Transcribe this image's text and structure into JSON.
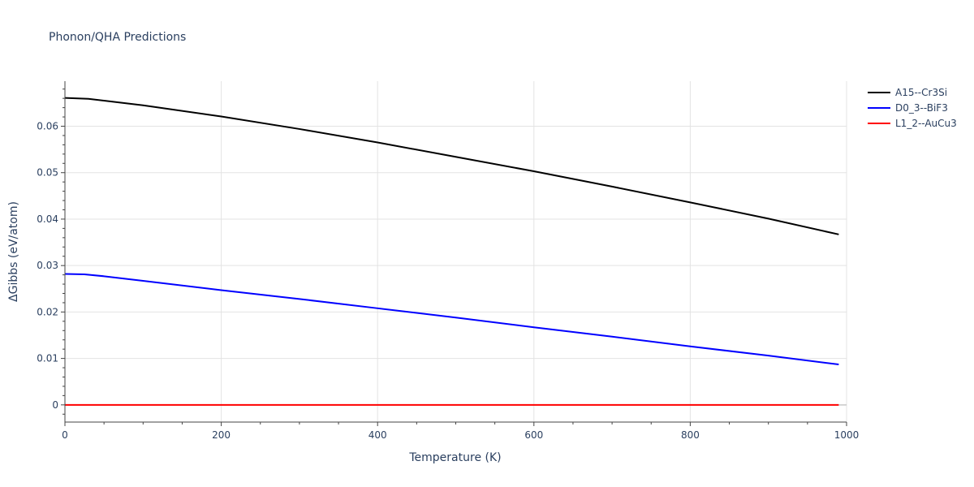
{
  "chart_data": {
    "type": "line",
    "title": "Phonon/QHA Predictions",
    "xlabel": "Temperature (K)",
    "ylabel": "ΔGibbs (eV/atom)",
    "xlim": [
      0,
      1000
    ],
    "ylim": [
      -0.0037,
      0.0697
    ],
    "xticks": [
      0,
      200,
      400,
      600,
      800,
      1000
    ],
    "xtick_labels": [
      "0",
      "200",
      "400",
      "600",
      "800",
      "1000"
    ],
    "yticks": [
      0,
      0.01,
      0.02,
      0.03,
      0.04,
      0.05,
      0.06
    ],
    "ytick_labels": [
      "0",
      "0.01",
      "0.02",
      "0.03",
      "0.04",
      "0.05",
      "0.06"
    ],
    "grid": true,
    "legend_position": "top-right",
    "series": [
      {
        "name": "A15--Cr3Si",
        "color": "#000000",
        "x": [
          0,
          30,
          50,
          100,
          200,
          300,
          400,
          500,
          600,
          700,
          800,
          900,
          990
        ],
        "y": [
          0.0661,
          0.0659,
          0.0655,
          0.0645,
          0.0621,
          0.0594,
          0.0565,
          0.0534,
          0.0503,
          0.047,
          0.0436,
          0.0401,
          0.0367
        ]
      },
      {
        "name": "D0_3--BiF3",
        "color": "#0000ff",
        "x": [
          0,
          25,
          50,
          100,
          200,
          300,
          400,
          500,
          600,
          700,
          800,
          900,
          990
        ],
        "y": [
          0.0282,
          0.0281,
          0.0277,
          0.0267,
          0.0247,
          0.0228,
          0.0208,
          0.0188,
          0.0167,
          0.0147,
          0.0126,
          0.0106,
          0.0087
        ]
      },
      {
        "name": "L1_2--AuCu3",
        "color": "#ff0000",
        "x": [
          0,
          990
        ],
        "y": [
          0,
          0
        ]
      }
    ]
  }
}
